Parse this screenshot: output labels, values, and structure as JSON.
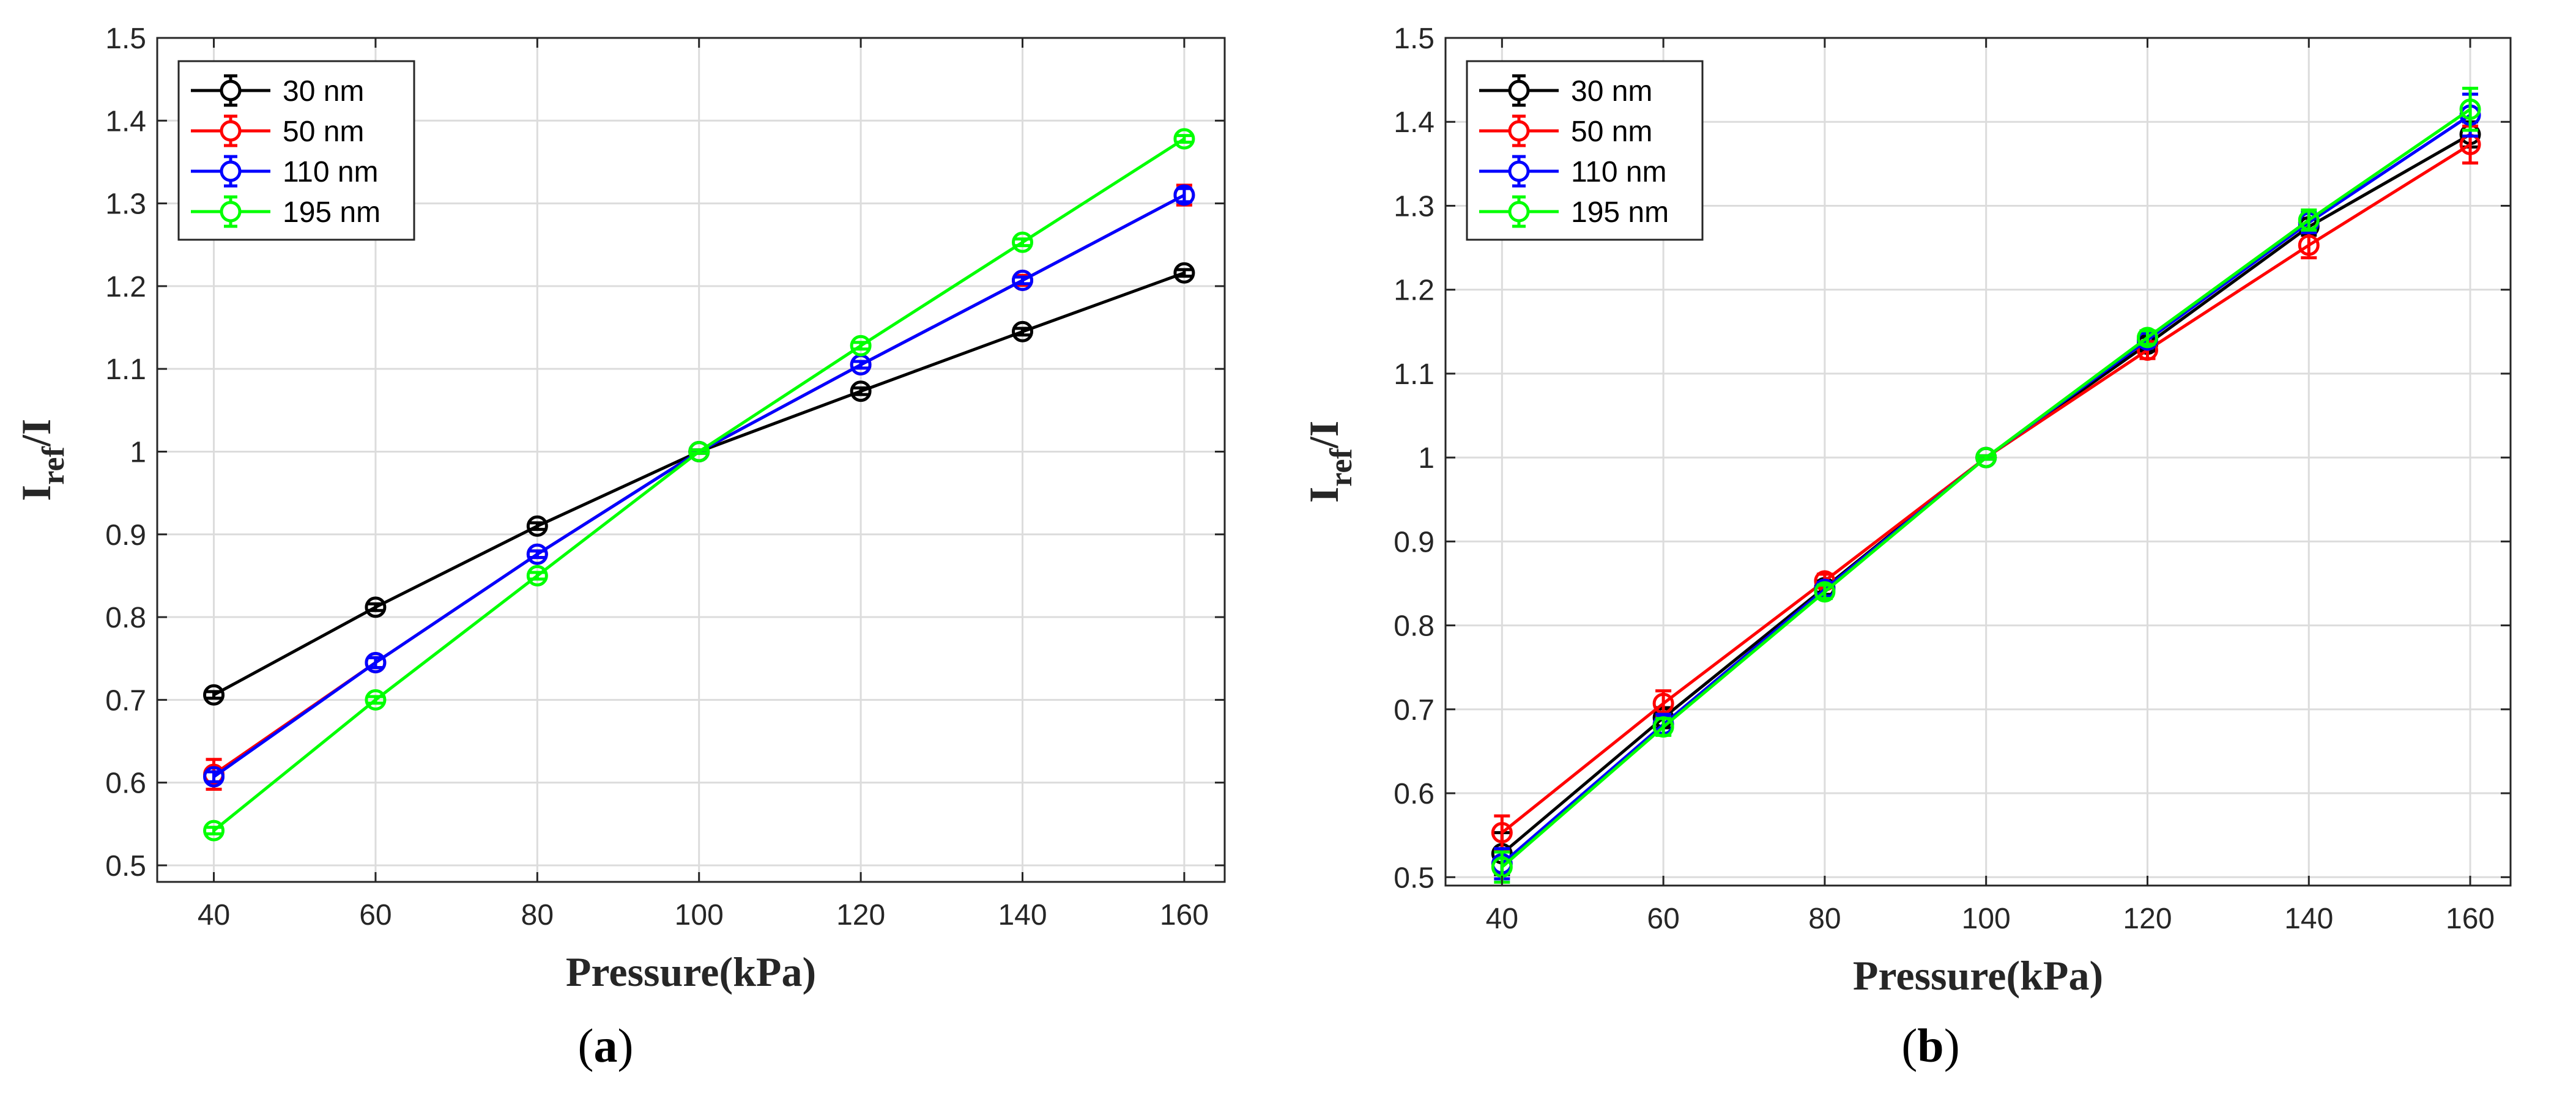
{
  "chart_data": [
    {
      "type": "line",
      "panel_label": "a",
      "title": "",
      "xlabel": "Pressure(kPa)",
      "ylabel_main": "I",
      "ylabel_sub": "ref",
      "ylabel_tail": "/I",
      "xlim": [
        33,
        165
      ],
      "ylim": [
        0.48,
        1.5
      ],
      "xticks": [
        40,
        60,
        80,
        100,
        120,
        140,
        160
      ],
      "xtick_labels": [
        "40",
        "60",
        "80",
        "100",
        "120",
        "140",
        "160"
      ],
      "yticks": [
        0.5,
        0.6,
        0.7,
        0.8,
        0.9,
        1.0,
        1.1,
        1.2,
        1.3,
        1.4,
        1.5
      ],
      "ytick_labels": [
        "0.5",
        "0.6",
        "0.7",
        "0.8",
        "0.9",
        "1",
        "1.1",
        "1.2",
        "1.3",
        "1.4",
        "1.5"
      ],
      "grid": true,
      "legend_position": "top-left",
      "x": [
        40,
        60,
        80,
        100,
        120,
        140,
        160
      ],
      "series": [
        {
          "name": "30 nm",
          "color": "#000000",
          "values": [
            0.706,
            0.812,
            0.91,
            1.0,
            1.073,
            1.145,
            1.216
          ],
          "errors": [
            0.004,
            0.004,
            0.004,
            0.002,
            0.004,
            0.004,
            0.004
          ]
        },
        {
          "name": "50 nm",
          "color": "#ff0000",
          "values": [
            0.61,
            0.745,
            0.876,
            1.0,
            1.105,
            1.207,
            1.31
          ],
          "errors": [
            0.018,
            0.006,
            0.004,
            0.002,
            0.004,
            0.006,
            0.012
          ]
        },
        {
          "name": "110 nm",
          "color": "#0000ff",
          "values": [
            0.607,
            0.745,
            0.876,
            1.0,
            1.105,
            1.207,
            1.31
          ],
          "errors": [
            0.006,
            0.006,
            0.004,
            0.002,
            0.004,
            0.004,
            0.008
          ]
        },
        {
          "name": "195 nm",
          "color": "#00ff00",
          "values": [
            0.542,
            0.7,
            0.85,
            1.0,
            1.128,
            1.253,
            1.378
          ],
          "errors": [
            0.004,
            0.004,
            0.004,
            0.002,
            0.004,
            0.004,
            0.004
          ]
        }
      ]
    },
    {
      "type": "line",
      "panel_label": "b",
      "title": "",
      "xlabel": "Pressure(kPa)",
      "ylabel_main": "I",
      "ylabel_sub": "ref",
      "ylabel_tail": "/I",
      "xlim": [
        33,
        165
      ],
      "ylim": [
        0.49,
        1.5
      ],
      "xticks": [
        40,
        60,
        80,
        100,
        120,
        140,
        160
      ],
      "xtick_labels": [
        "40",
        "60",
        "80",
        "100",
        "120",
        "140",
        "160"
      ],
      "yticks": [
        0.5,
        0.6,
        0.7,
        0.8,
        0.9,
        1.0,
        1.1,
        1.2,
        1.3,
        1.4,
        1.5
      ],
      "ytick_labels": [
        "0.5",
        "0.6",
        "0.7",
        "0.8",
        "0.9",
        "1",
        "1.1",
        "1.2",
        "1.3",
        "1.4",
        "1.5"
      ],
      "grid": true,
      "legend_position": "top-left",
      "x": [
        40,
        60,
        80,
        100,
        120,
        140,
        160
      ],
      "series": [
        {
          "name": "30 nm",
          "color": "#000000",
          "values": [
            0.528,
            0.69,
            0.845,
            1.0,
            1.135,
            1.275,
            1.385
          ],
          "errors": [
            0.025,
            0.012,
            0.008,
            0.002,
            0.008,
            0.01,
            0.015
          ]
        },
        {
          "name": "50 nm",
          "color": "#ff0000",
          "values": [
            0.553,
            0.707,
            0.853,
            1.0,
            1.128,
            1.253,
            1.373
          ],
          "errors": [
            0.02,
            0.015,
            0.008,
            0.002,
            0.01,
            0.015,
            0.022
          ]
        },
        {
          "name": "110 nm",
          "color": "#0000ff",
          "values": [
            0.516,
            0.682,
            0.843,
            1.0,
            1.14,
            1.28,
            1.408
          ],
          "errors": [
            0.018,
            0.012,
            0.008,
            0.002,
            0.008,
            0.012,
            0.025
          ]
        },
        {
          "name": "195 nm",
          "color": "#00ff00",
          "values": [
            0.512,
            0.679,
            0.84,
            1.0,
            1.143,
            1.283,
            1.415
          ],
          "errors": [
            0.018,
            0.01,
            0.008,
            0.002,
            0.008,
            0.012,
            0.025
          ]
        }
      ]
    }
  ]
}
